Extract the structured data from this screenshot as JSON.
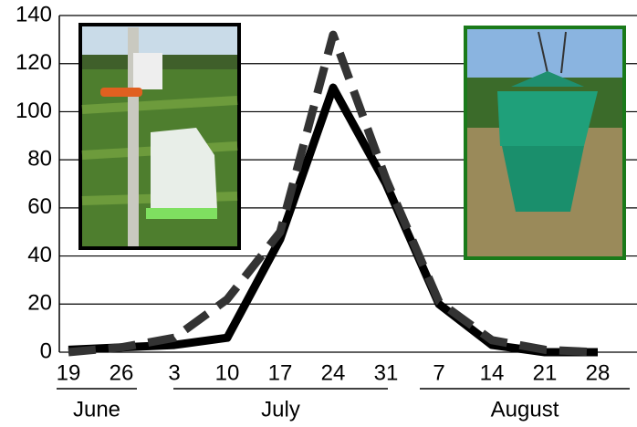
{
  "chart_data": {
    "type": "line",
    "categories": [
      "19",
      "26",
      "3",
      "10",
      "17",
      "24",
      "31",
      "7",
      "14",
      "21",
      "28"
    ],
    "groups": [
      "June",
      "July",
      "August"
    ],
    "series": [
      {
        "color": "#000000",
        "style": "solid",
        "values": [
          1,
          2,
          3,
          6,
          47,
          110,
          70,
          20,
          3,
          0,
          0
        ]
      },
      {
        "color": "#333333",
        "style": "dashed",
        "values": [
          0,
          2,
          6,
          22,
          50,
          132,
          72,
          21,
          5,
          1,
          0
        ]
      }
    ],
    "ylim": [
      0,
      140
    ],
    "yticks": [
      0,
      20,
      40,
      60,
      80,
      100,
      120,
      140
    ],
    "grid": true
  }
}
